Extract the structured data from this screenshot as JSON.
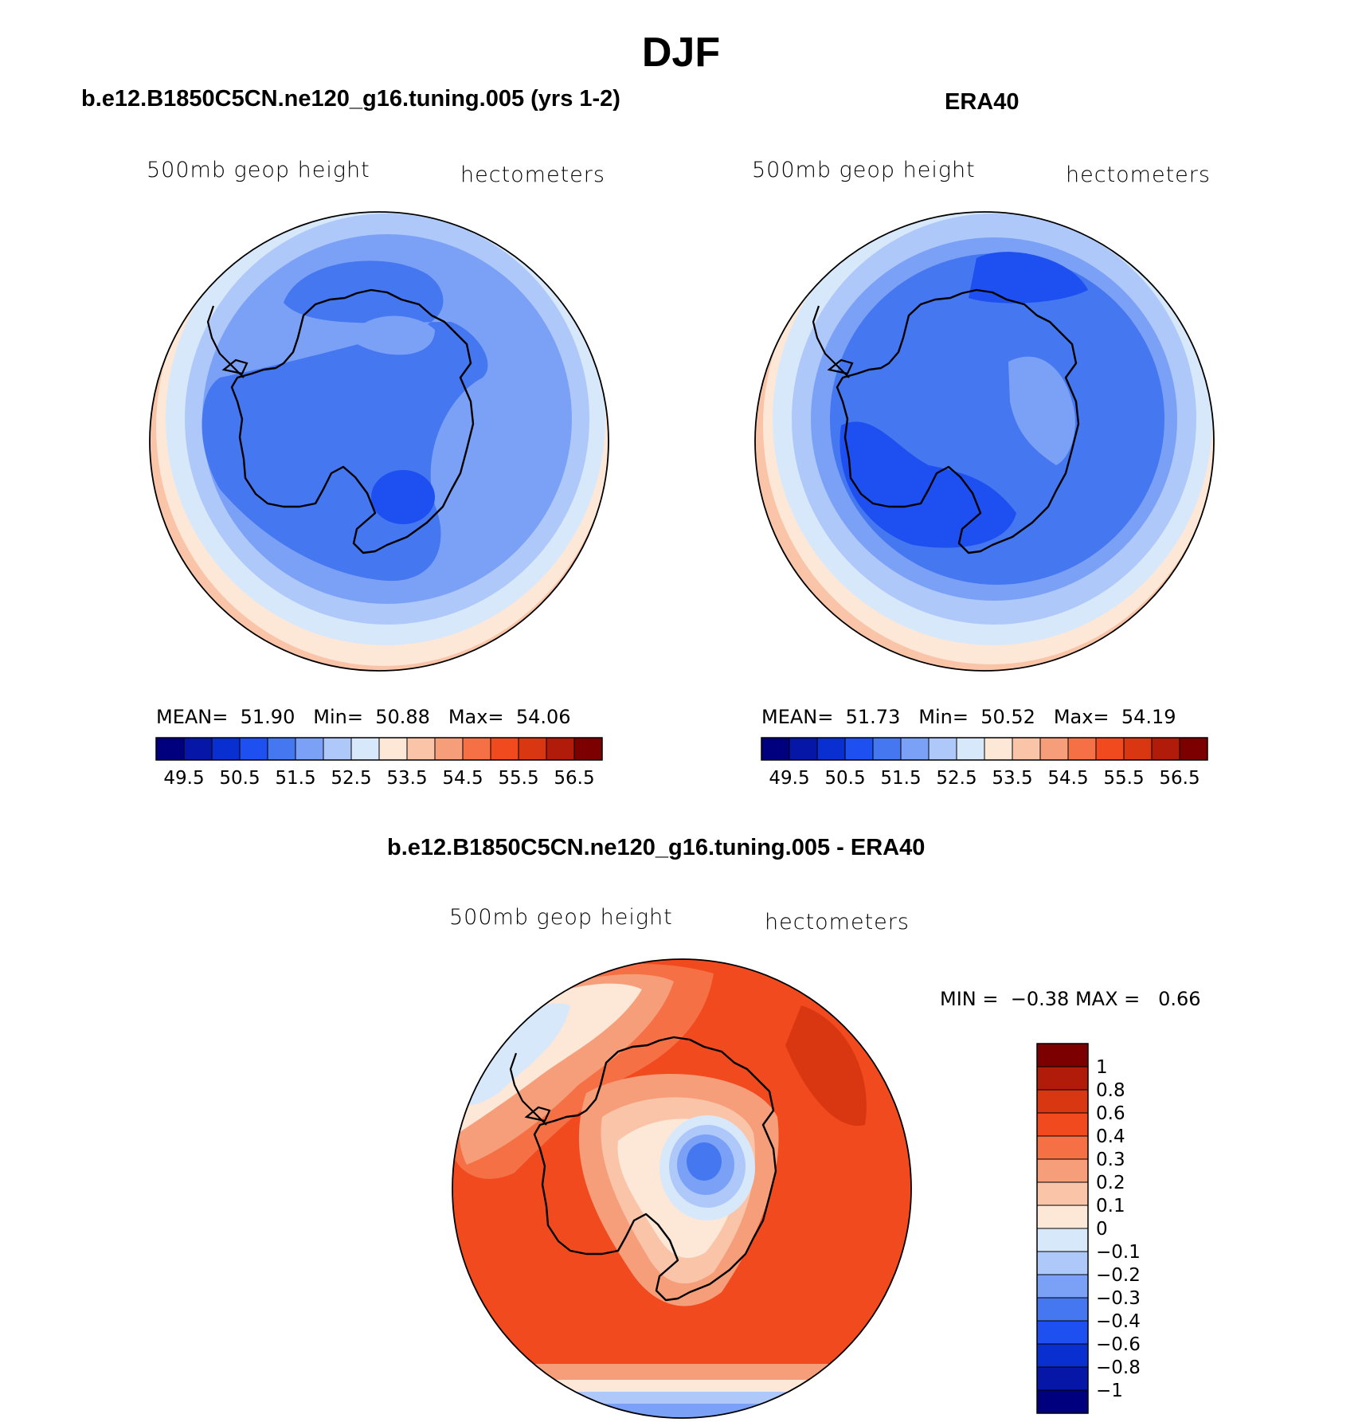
{
  "title": "DJF",
  "panels": [
    {
      "id": "model",
      "title": "b.e12.B1850C5CN.ne120_g16.tuning.005 (yrs 1-2)",
      "left_label": "500mb geop height",
      "right_label": "hectometers",
      "stats": {
        "mean_label": "MEAN=",
        "mean": "51.90",
        "min_label": "Min=",
        "min": "50.88",
        "max_label": "Max=",
        "max": "54.06"
      }
    },
    {
      "id": "obs",
      "title": "ERA40",
      "left_label": "500mb geop height",
      "right_label": "hectometers",
      "stats": {
        "mean_label": "MEAN=",
        "mean": "51.73",
        "min_label": "Min=",
        "min": "50.52",
        "max_label": "Max=",
        "max": "54.19"
      }
    }
  ],
  "diff_panel": {
    "title": "b.e12.B1850C5CN.ne120_g16.tuning.005 - ERA40",
    "left_label": "500mb geop height",
    "right_label": "hectometers",
    "stats": {
      "min_label": "MIN =",
      "min": "−0.38",
      "max_label": "MAX =",
      "max": "0.66"
    }
  },
  "colorbar_abs": {
    "labels": [
      "49.5",
      "50.5",
      "51.5",
      "52.5",
      "53.5",
      "54.5",
      "55.5",
      "56.5"
    ],
    "colors": [
      "#00007f",
      "#0617a8",
      "#0a2fd0",
      "#1e4ff0",
      "#4477f0",
      "#7ba1f7",
      "#aec8fa",
      "#d8e8fb",
      "#fde7d7",
      "#f9c4a8",
      "#f69e7a",
      "#f57045",
      "#f24a1f",
      "#d93712",
      "#b01c09",
      "#7d0000"
    ]
  },
  "colorbar_diff": {
    "labels": [
      "1",
      "0.8",
      "0.6",
      "0.4",
      "0.3",
      "0.2",
      "0.1",
      "0",
      "−0.1",
      "−0.2",
      "−0.3",
      "−0.4",
      "−0.6",
      "−0.8",
      "−1"
    ],
    "colors": [
      "#7d0000",
      "#b01c09",
      "#d93712",
      "#f24a1f",
      "#f57045",
      "#f69e7a",
      "#f9c4a8",
      "#fde7d7",
      "#d8e8fb",
      "#aec8fa",
      "#7ba1f7",
      "#4477f0",
      "#1e4ff0",
      "#0a2fd0",
      "#0617a8",
      "#00007f"
    ]
  }
}
